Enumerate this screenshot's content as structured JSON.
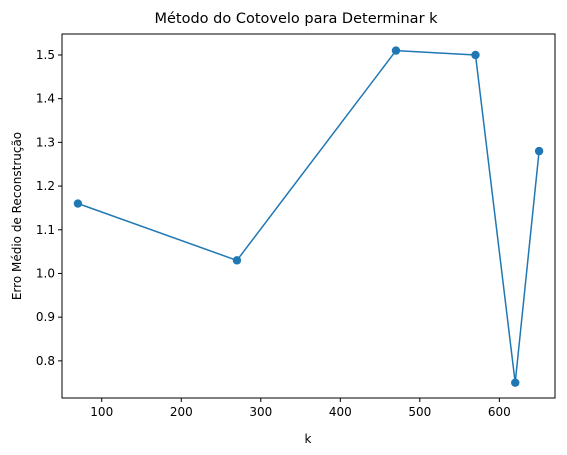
{
  "chart_data": {
    "type": "line",
    "title": "Método do Cotovelo para Determinar k",
    "xlabel": "k",
    "ylabel": "Erro Médio de Reconstrução",
    "xlim": [
      50,
      670
    ],
    "ylim": [
      0.715,
      1.548
    ],
    "x_ticks": [
      100,
      200,
      300,
      400,
      500,
      600
    ],
    "y_ticks": [
      0.8,
      0.9,
      1.0,
      1.1,
      1.2,
      1.3,
      1.4,
      1.5
    ],
    "x_tick_labels": [
      "100",
      "200",
      "300",
      "400",
      "500",
      "600"
    ],
    "y_tick_labels": [
      "0.8",
      "0.9",
      "1.0",
      "1.1",
      "1.2",
      "1.3",
      "1.4",
      "1.5"
    ],
    "grid": false,
    "color": "#1f77b4",
    "series": [
      {
        "x": [
          70,
          270,
          470,
          570,
          620,
          650
        ],
        "values": [
          1.16,
          1.03,
          1.51,
          1.5,
          0.75,
          1.28
        ]
      }
    ]
  }
}
